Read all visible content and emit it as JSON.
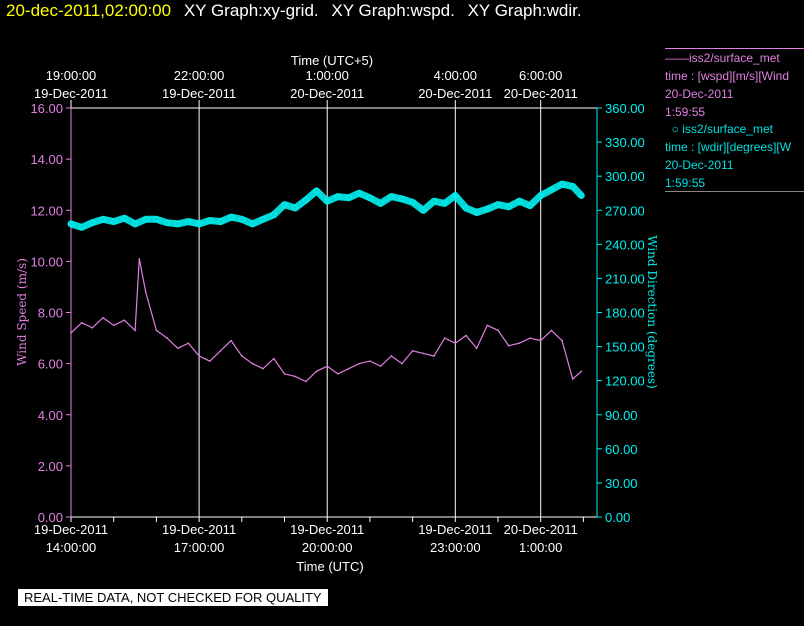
{
  "header": {
    "timestamp": "20-dec-2011,02:00:00",
    "titles": [
      "XY Graph:xy-grid.",
      "XY Graph:wspd.",
      "XY Graph:wdir."
    ]
  },
  "colors": {
    "wspd": "#e080e0",
    "wdir": "#00f0f0",
    "axis": "#e080e0",
    "grid": "#ffffff"
  },
  "legend": {
    "wspd": {
      "line1": "iss2/surface_met",
      "line2": "time : [wspd][m/s][Wind",
      "line3": "20-Dec-2011",
      "line4": "1:59:55"
    },
    "wdir": {
      "line1": "iss2/surface_met",
      "line2": "time : [wdir][degrees][W",
      "line3": "20-Dec-2011",
      "line4": "1:59:55"
    }
  },
  "notice": "REAL-TIME DATA, NOT CHECKED FOR QUALITY",
  "chart_data": {
    "type": "line",
    "top_axis": {
      "label": "Time (UTC+5)",
      "ticks": [
        {
          "time": "19:00:00",
          "date": "19-Dec-2011"
        },
        {
          "time": "22:00:00",
          "date": "19-Dec-2011"
        },
        {
          "time": "1:00:00",
          "date": "20-Dec-2011"
        },
        {
          "time": "4:00:00",
          "date": "20-Dec-2011"
        },
        {
          "time": "6:00:00",
          "date": "20-Dec-2011"
        }
      ]
    },
    "bottom_axis": {
      "label": "Time (UTC)",
      "ticks": [
        {
          "date": "19-Dec-2011",
          "time": "14:00:00",
          "hours": 0
        },
        {
          "date": "19-Dec-2011",
          "time": "17:00:00",
          "hours": 3
        },
        {
          "date": "19-Dec-2011",
          "time": "20:00:00",
          "hours": 6
        },
        {
          "date": "19-Dec-2011",
          "time": "23:00:00",
          "hours": 9
        },
        {
          "date": "20-Dec-2011",
          "time": "1:00:00",
          "hours": 11
        }
      ],
      "xlim": [
        "19-Dec-2011 14:00:00",
        "20-Dec-2011 01:59:55"
      ]
    },
    "left_axis": {
      "label": "Wind Speed (m/s)",
      "ylim": [
        0,
        16
      ],
      "ticks": [
        "0.00",
        "2.00",
        "4.00",
        "6.00",
        "8.00",
        "10.00",
        "12.00",
        "14.00",
        "16.00"
      ]
    },
    "right_axis": {
      "label": "Wind Direction (degrees)",
      "ylim": [
        0,
        360
      ],
      "ticks": [
        "0.00",
        "30.00",
        "60.00",
        "90.00",
        "120.00",
        "150.00",
        "180.00",
        "210.00",
        "240.00",
        "270.00",
        "300.00",
        "330.00",
        "360.00"
      ]
    },
    "grid": "vertical lines at bottom-axis ticks",
    "series": [
      {
        "name": "iss2/surface_met",
        "axis": "left",
        "x_hours": [
          0,
          0.25,
          0.5,
          0.75,
          1,
          1.25,
          1.5,
          1.6,
          1.75,
          2,
          2.25,
          2.5,
          2.75,
          3,
          3.25,
          3.5,
          3.75,
          4,
          4.25,
          4.5,
          4.75,
          5,
          5.25,
          5.5,
          5.75,
          6,
          6.25,
          6.5,
          6.75,
          7,
          7.25,
          7.5,
          7.75,
          8,
          8.25,
          8.5,
          8.75,
          9,
          9.25,
          9.5,
          9.75,
          10,
          10.25,
          10.5,
          10.75,
          11,
          11.25,
          11.5,
          11.75,
          11.95
        ],
        "values": [
          7.2,
          7.6,
          7.4,
          7.8,
          7.5,
          7.7,
          7.3,
          10.1,
          8.8,
          7.3,
          7.0,
          6.6,
          6.8,
          6.3,
          6.1,
          6.5,
          6.9,
          6.3,
          6.0,
          5.8,
          6.2,
          5.6,
          5.5,
          5.3,
          5.7,
          5.9,
          5.6,
          5.8,
          6.0,
          6.1,
          5.9,
          6.3,
          6.0,
          6.5,
          6.4,
          6.3,
          7.0,
          6.8,
          7.1,
          6.6,
          7.5,
          7.3,
          6.7,
          6.8,
          7.0,
          6.9,
          7.3,
          6.9,
          5.4,
          5.7
        ]
      },
      {
        "name": "iss2/surface_met",
        "axis": "right",
        "x_hours": [
          0,
          0.25,
          0.5,
          0.75,
          1,
          1.25,
          1.5,
          1.75,
          2,
          2.25,
          2.5,
          2.75,
          3,
          3.25,
          3.5,
          3.75,
          4,
          4.25,
          4.5,
          4.75,
          5,
          5.25,
          5.5,
          5.75,
          6,
          6.25,
          6.5,
          6.75,
          7,
          7.25,
          7.5,
          7.75,
          8,
          8.25,
          8.5,
          8.75,
          9,
          9.25,
          9.5,
          9.75,
          10,
          10.25,
          10.5,
          10.75,
          11,
          11.25,
          11.5,
          11.75,
          11.95
        ],
        "values": [
          258,
          255,
          259,
          262,
          260,
          263,
          258,
          262,
          262,
          259,
          258,
          260,
          258,
          261,
          260,
          264,
          262,
          258,
          262,
          266,
          275,
          272,
          279,
          287,
          278,
          282,
          281,
          285,
          281,
          276,
          282,
          280,
          277,
          270,
          278,
          276,
          283,
          272,
          268,
          271,
          275,
          273,
          278,
          274,
          283,
          288,
          293,
          291,
          283
        ]
      }
    ]
  }
}
